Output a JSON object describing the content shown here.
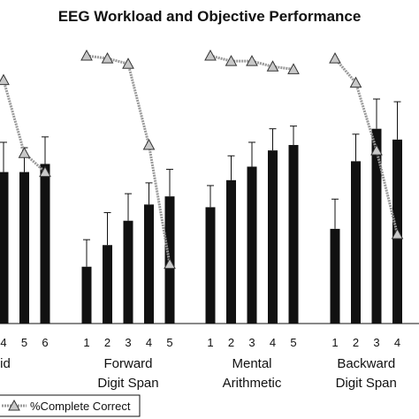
{
  "chart_data": {
    "type": "bar",
    "title": "EEG Workload and Objective Performance",
    "bar_color": "#111111",
    "line_color": "#999999",
    "marker_fill": "#c8c8c8",
    "ylim": [
      0,
      100
    ],
    "groups": [
      {
        "label_lines": [
          "id"
        ],
        "categories": [
          "4",
          "5",
          "6"
        ],
        "bars": [
          {
            "category": "4",
            "value": 56,
            "error": 11
          },
          {
            "category": "5",
            "value": 56,
            "error": 9
          },
          {
            "category": "6",
            "value": 59,
            "error": 10
          }
        ],
        "line": [
          {
            "category": "4",
            "value": 90
          },
          {
            "category": "5",
            "value": 63
          },
          {
            "category": "6",
            "value": 56
          }
        ]
      },
      {
        "label_lines": [
          "Forward",
          "Digit Span"
        ],
        "categories": [
          "1",
          "2",
          "3",
          "4",
          "5"
        ],
        "bars": [
          {
            "category": "1",
            "value": 21,
            "error": 10
          },
          {
            "category": "2",
            "value": 29,
            "error": 12
          },
          {
            "category": "3",
            "value": 38,
            "error": 10
          },
          {
            "category": "4",
            "value": 44,
            "error": 8
          },
          {
            "category": "5",
            "value": 47,
            "error": 10
          }
        ],
        "line": [
          {
            "category": "1",
            "value": 99
          },
          {
            "category": "2",
            "value": 98
          },
          {
            "category": "3",
            "value": 96
          },
          {
            "category": "4",
            "value": 66
          },
          {
            "category": "5",
            "value": 22
          }
        ]
      },
      {
        "label_lines": [
          "Mental",
          "Arithmetic"
        ],
        "categories": [
          "1",
          "2",
          "3",
          "4",
          "5"
        ],
        "bars": [
          {
            "category": "1",
            "value": 43,
            "error": 8
          },
          {
            "category": "2",
            "value": 53,
            "error": 9
          },
          {
            "category": "3",
            "value": 58,
            "error": 9
          },
          {
            "category": "4",
            "value": 64,
            "error": 8
          },
          {
            "category": "5",
            "value": 66,
            "error": 7
          }
        ],
        "line": [
          {
            "category": "1",
            "value": 99
          },
          {
            "category": "2",
            "value": 97
          },
          {
            "category": "3",
            "value": 97
          },
          {
            "category": "4",
            "value": 95
          },
          {
            "category": "5",
            "value": 94
          }
        ]
      },
      {
        "label_lines": [
          "Backward",
          "Digit Span"
        ],
        "categories": [
          "1",
          "2",
          "3",
          "4"
        ],
        "bars": [
          {
            "category": "1",
            "value": 35,
            "error": 11
          },
          {
            "category": "2",
            "value": 60,
            "error": 10
          },
          {
            "category": "3",
            "value": 72,
            "error": 11
          },
          {
            "category": "4",
            "value": 68,
            "error": 14
          }
        ],
        "line": [
          {
            "category": "1",
            "value": 98
          },
          {
            "category": "2",
            "value": 89
          },
          {
            "category": "3",
            "value": 64
          },
          {
            "category": "4",
            "value": 33
          }
        ]
      }
    ],
    "legend": {
      "entries": [
        "%Complete Correct"
      ],
      "position": "bottom"
    }
  }
}
